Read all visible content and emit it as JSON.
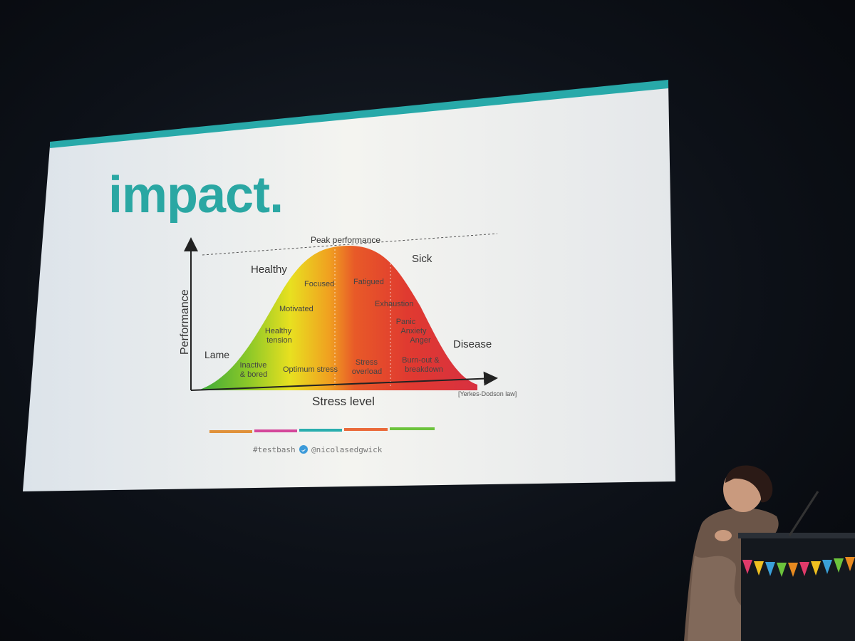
{
  "slide": {
    "title": "impact.",
    "accent_color": "#28a9a9",
    "footer": {
      "hashtag": "#testbash",
      "twitter_handle": "@nicolasedgwick",
      "twitter_icon": "twitter-bird-icon",
      "color_bars": [
        "#e0913a",
        "#d4479a",
        "#2aaeae",
        "#ea6a3a",
        "#6cc33c"
      ]
    },
    "chart": {
      "peak_label": "Peak performance",
      "y_axis_label": "Performance",
      "x_axis_label": "Stress level",
      "citation": "[Yerkes-Dodson law]",
      "zones": {
        "lame": "Lame",
        "healthy": "Healthy",
        "sick": "Sick",
        "disease": "Disease"
      },
      "labels": {
        "focused": "Focused",
        "fatigued": "Fatigued",
        "motivated": "Motivated",
        "exhaustion": "Exhaustion",
        "healthy_tension": [
          "Healthy",
          "tension"
        ],
        "panic": [
          "Panic",
          "Anxiety",
          "Anger"
        ],
        "inactive": [
          "Inactive",
          "& bored"
        ],
        "optimum": "Optimum stress",
        "overload": [
          "Stress",
          "overload"
        ],
        "burnout": [
          "Burn-out &",
          "breakdown"
        ]
      }
    }
  }
}
